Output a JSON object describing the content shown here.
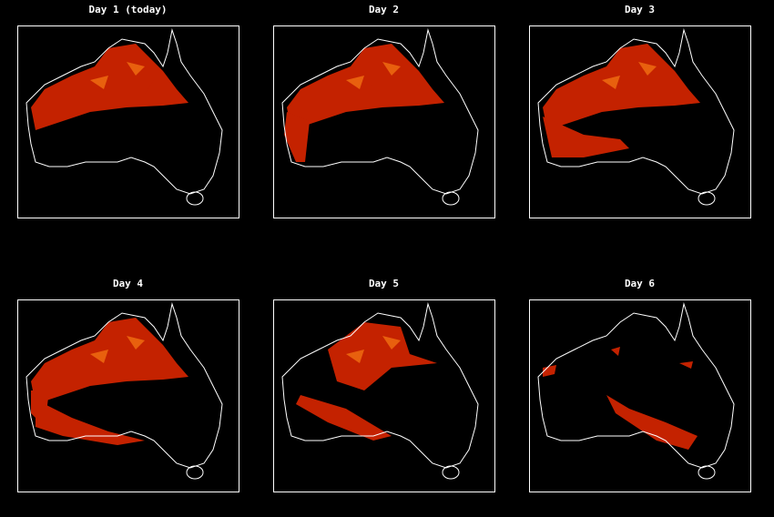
{
  "panels": [
    {
      "title": "Day 1 (today)"
    },
    {
      "title": "Day 2"
    },
    {
      "title": "Day 3"
    },
    {
      "title": "Day 4"
    },
    {
      "title": "Day 5"
    },
    {
      "title": "Day 6"
    }
  ]
}
